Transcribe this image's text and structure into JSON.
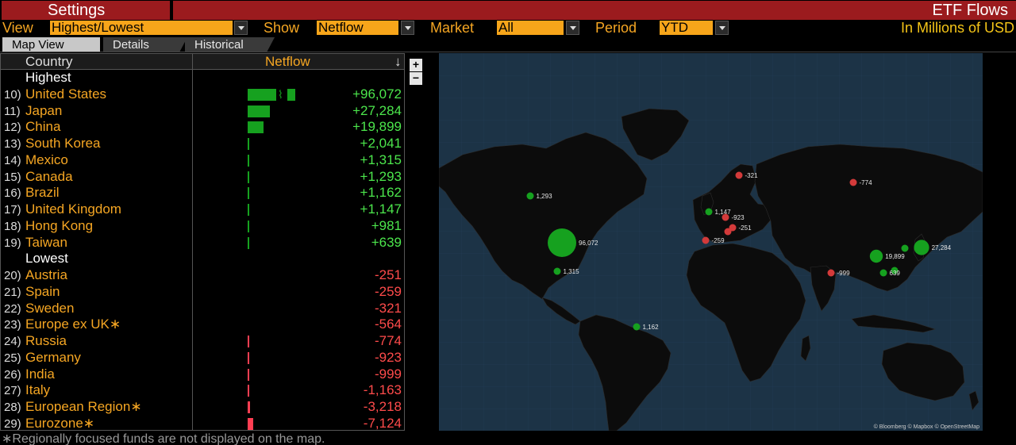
{
  "title": {
    "left": "Settings",
    "right": "ETF Flows"
  },
  "controls": {
    "view_label": "View",
    "view_value": "Highest/Lowest",
    "show_label": "Show",
    "show_value": "Netflow",
    "market_label": "Market",
    "market_value": "All",
    "period_label": "Period",
    "period_value": "YTD",
    "units": "In Millions of USD"
  },
  "tabs": [
    {
      "label": "Map View",
      "active": true
    },
    {
      "label": "Details",
      "active": false
    },
    {
      "label": "Historical",
      "active": false
    }
  ],
  "table": {
    "col_country": "Country",
    "col_netflow": "Netflow",
    "sort_icon": "arrow-down-icon",
    "highest_label": "Highest",
    "lowest_label": "Lowest",
    "highest": [
      {
        "rank": "10)",
        "country": "United States",
        "value": "+96,072",
        "num": 96072,
        "break": true
      },
      {
        "rank": "11)",
        "country": "Japan",
        "value": "+27,284",
        "num": 27284
      },
      {
        "rank": "12)",
        "country": "China",
        "value": "+19,899",
        "num": 19899
      },
      {
        "rank": "13)",
        "country": "South Korea",
        "value": "+2,041",
        "num": 2041
      },
      {
        "rank": "14)",
        "country": "Mexico",
        "value": "+1,315",
        "num": 1315
      },
      {
        "rank": "15)",
        "country": "Canada",
        "value": "+1,293",
        "num": 1293
      },
      {
        "rank": "16)",
        "country": "Brazil",
        "value": "+1,162",
        "num": 1162
      },
      {
        "rank": "17)",
        "country": "United Kingdom",
        "value": "+1,147",
        "num": 1147
      },
      {
        "rank": "18)",
        "country": "Hong Kong",
        "value": "+981",
        "num": 981
      },
      {
        "rank": "19)",
        "country": "Taiwan",
        "value": "+639",
        "num": 639
      }
    ],
    "lowest": [
      {
        "rank": "20)",
        "country": "Austria",
        "value": "-251",
        "num": -251
      },
      {
        "rank": "21)",
        "country": "Spain",
        "value": "-259",
        "num": -259
      },
      {
        "rank": "22)",
        "country": "Sweden",
        "value": "-321",
        "num": -321
      },
      {
        "rank": "23)",
        "country": "Europe ex UK∗",
        "value": "-564",
        "num": -564
      },
      {
        "rank": "24)",
        "country": "Russia",
        "value": "-774",
        "num": -774
      },
      {
        "rank": "25)",
        "country": "Germany",
        "value": "-923",
        "num": -923
      },
      {
        "rank": "26)",
        "country": "India",
        "value": "-999",
        "num": -999
      },
      {
        "rank": "27)",
        "country": "Italy",
        "value": "-1,163",
        "num": -1163
      },
      {
        "rank": "28)",
        "country": "European Region∗",
        "value": "-3,218",
        "num": -3218
      },
      {
        "rank": "29)",
        "country": "Eurozone∗",
        "value": "-7,124",
        "num": -7124
      }
    ]
  },
  "map": {
    "zoom_in": "+",
    "zoom_out": "−",
    "attribution": "© Bloomberg © Mapbox © OpenStreetMap",
    "markers": [
      {
        "label": "96,072",
        "country": "United States",
        "sign": "pos"
      },
      {
        "label": "27,284",
        "country": "Japan",
        "sign": "pos"
      },
      {
        "label": "19,899",
        "country": "China",
        "sign": "pos"
      },
      {
        "label": "",
        "country": "South Korea",
        "sign": "pos"
      },
      {
        "label": "1,315",
        "country": "Mexico",
        "sign": "pos"
      },
      {
        "label": "1,293",
        "country": "Canada",
        "sign": "pos"
      },
      {
        "label": "1,162",
        "country": "Brazil",
        "sign": "pos"
      },
      {
        "label": "1,147",
        "country": "United Kingdom",
        "sign": "pos"
      },
      {
        "label": "",
        "country": "Hong Kong",
        "sign": "pos"
      },
      {
        "label": "639",
        "country": "Taiwan",
        "sign": "pos"
      },
      {
        "label": "-251",
        "country": "Austria",
        "sign": "neg"
      },
      {
        "label": "-259",
        "country": "Spain",
        "sign": "neg"
      },
      {
        "label": "-321",
        "country": "Sweden",
        "sign": "neg"
      },
      {
        "label": "-774",
        "country": "Russia",
        "sign": "neg"
      },
      {
        "label": "-923",
        "country": "Germany",
        "sign": "neg"
      },
      {
        "label": "-999",
        "country": "India",
        "sign": "neg"
      },
      {
        "label": "",
        "country": "Italy",
        "sign": "neg"
      }
    ]
  },
  "colors": {
    "positive": "#16a11f",
    "negative": "#ff3e52",
    "accent": "#f5a623",
    "title_bar": "#9b1b1e",
    "ocean": "#1c3346",
    "land": "#0c0c0c"
  },
  "footnote": "∗Regionally focused funds are not displayed on the map."
}
